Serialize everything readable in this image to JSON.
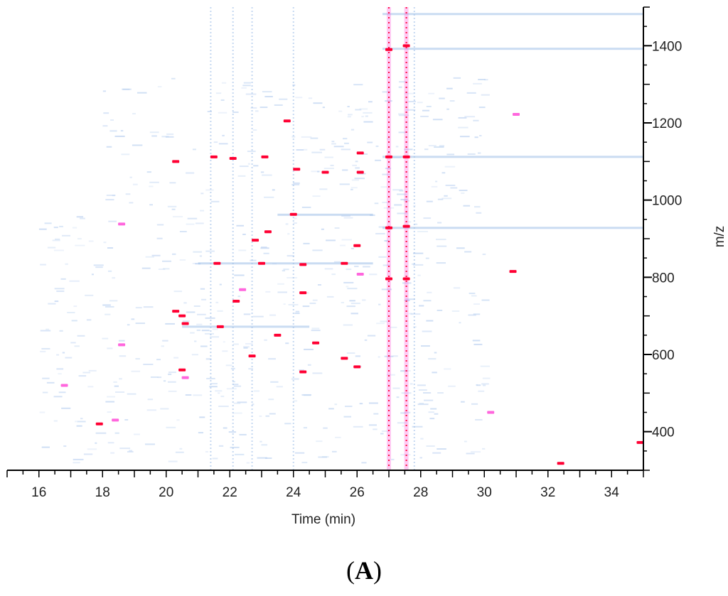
{
  "chart_data": {
    "type": "heatmap",
    "title": "",
    "xlabel": "Time (min)",
    "ylabel": "m/z",
    "xlim": [
      15,
      35
    ],
    "ylim": [
      300,
      1500
    ],
    "x_ticks": [
      16,
      18,
      20,
      22,
      24,
      26,
      28,
      30,
      32,
      34
    ],
    "y_ticks": [
      400,
      600,
      800,
      1000,
      1200,
      1400
    ],
    "y_axis_side": "right",
    "grid": false,
    "colors": {
      "high": "#ff0033",
      "medium": "#ff66dd",
      "low": "#9fbfe8",
      "background": "#ffffff"
    },
    "vertical_traces": [
      {
        "x": 21.4,
        "intensity": "low"
      },
      {
        "x": 22.1,
        "intensity": "low"
      },
      {
        "x": 22.7,
        "intensity": "low"
      },
      {
        "x": 24.0,
        "intensity": "low"
      },
      {
        "x": 27.0,
        "intensity": "high"
      },
      {
        "x": 27.55,
        "intensity": "high"
      },
      {
        "x": 27.8,
        "intensity": "low"
      }
    ],
    "horizontal_traces": [
      {
        "x0": 26.8,
        "x1": 35.0,
        "mz": 1482,
        "intensity": "low"
      },
      {
        "x0": 26.8,
        "x1": 35.0,
        "mz": 1392,
        "intensity": "low"
      },
      {
        "x0": 26.8,
        "x1": 35.0,
        "mz": 1112,
        "intensity": "low"
      },
      {
        "x0": 26.8,
        "x1": 35.0,
        "mz": 928,
        "intensity": "low"
      },
      {
        "x0": 23.5,
        "x1": 26.5,
        "mz": 962,
        "intensity": "low"
      },
      {
        "x0": 21.0,
        "x1": 26.5,
        "mz": 836,
        "intensity": "low"
      },
      {
        "x0": 20.5,
        "x1": 24.5,
        "mz": 672,
        "intensity": "low"
      }
    ],
    "peaks": [
      {
        "t": 17.9,
        "mz": 420,
        "intensity": "high"
      },
      {
        "t": 18.4,
        "mz": 430,
        "intensity": "medium"
      },
      {
        "t": 20.3,
        "mz": 1100,
        "intensity": "high"
      },
      {
        "t": 20.3,
        "mz": 712,
        "intensity": "high"
      },
      {
        "t": 20.5,
        "mz": 700,
        "intensity": "high"
      },
      {
        "t": 20.6,
        "mz": 680,
        "intensity": "high"
      },
      {
        "t": 20.5,
        "mz": 560,
        "intensity": "high"
      },
      {
        "t": 20.6,
        "mz": 540,
        "intensity": "medium"
      },
      {
        "t": 21.5,
        "mz": 1112,
        "intensity": "high"
      },
      {
        "t": 21.6,
        "mz": 836,
        "intensity": "high"
      },
      {
        "t": 21.7,
        "mz": 672,
        "intensity": "high"
      },
      {
        "t": 22.1,
        "mz": 1108,
        "intensity": "high"
      },
      {
        "t": 22.2,
        "mz": 738,
        "intensity": "high"
      },
      {
        "t": 22.4,
        "mz": 768,
        "intensity": "medium"
      },
      {
        "t": 22.8,
        "mz": 896,
        "intensity": "high"
      },
      {
        "t": 22.7,
        "mz": 596,
        "intensity": "high"
      },
      {
        "t": 23.0,
        "mz": 836,
        "intensity": "high"
      },
      {
        "t": 23.1,
        "mz": 1112,
        "intensity": "high"
      },
      {
        "t": 23.2,
        "mz": 918,
        "intensity": "high"
      },
      {
        "t": 23.5,
        "mz": 650,
        "intensity": "high"
      },
      {
        "t": 23.8,
        "mz": 1205,
        "intensity": "high"
      },
      {
        "t": 24.0,
        "mz": 963,
        "intensity": "high"
      },
      {
        "t": 24.1,
        "mz": 1080,
        "intensity": "high"
      },
      {
        "t": 24.3,
        "mz": 833,
        "intensity": "high"
      },
      {
        "t": 24.3,
        "mz": 760,
        "intensity": "high"
      },
      {
        "t": 24.3,
        "mz": 555,
        "intensity": "high"
      },
      {
        "t": 24.7,
        "mz": 630,
        "intensity": "high"
      },
      {
        "t": 25.0,
        "mz": 1072,
        "intensity": "high"
      },
      {
        "t": 25.6,
        "mz": 836,
        "intensity": "high"
      },
      {
        "t": 25.6,
        "mz": 590,
        "intensity": "high"
      },
      {
        "t": 26.0,
        "mz": 882,
        "intensity": "high"
      },
      {
        "t": 26.1,
        "mz": 1122,
        "intensity": "high"
      },
      {
        "t": 26.1,
        "mz": 1072,
        "intensity": "high"
      },
      {
        "t": 26.0,
        "mz": 568,
        "intensity": "high"
      },
      {
        "t": 26.1,
        "mz": 808,
        "intensity": "medium"
      },
      {
        "t": 27.0,
        "mz": 1390,
        "intensity": "high"
      },
      {
        "t": 27.0,
        "mz": 1112,
        "intensity": "high"
      },
      {
        "t": 27.0,
        "mz": 928,
        "intensity": "high"
      },
      {
        "t": 27.0,
        "mz": 796,
        "intensity": "high"
      },
      {
        "t": 27.55,
        "mz": 1400,
        "intensity": "high"
      },
      {
        "t": 27.55,
        "mz": 1112,
        "intensity": "high"
      },
      {
        "t": 27.55,
        "mz": 932,
        "intensity": "high"
      },
      {
        "t": 27.55,
        "mz": 796,
        "intensity": "high"
      },
      {
        "t": 30.2,
        "mz": 450,
        "intensity": "medium"
      },
      {
        "t": 30.9,
        "mz": 815,
        "intensity": "high"
      },
      {
        "t": 31.0,
        "mz": 1222,
        "intensity": "medium"
      },
      {
        "t": 32.4,
        "mz": 318,
        "intensity": "high"
      },
      {
        "t": 34.9,
        "mz": 372,
        "intensity": "high"
      },
      {
        "t": 18.6,
        "mz": 938,
        "intensity": "medium"
      },
      {
        "t": 16.8,
        "mz": 520,
        "intensity": "medium"
      },
      {
        "t": 18.6,
        "mz": 625,
        "intensity": "medium"
      }
    ]
  },
  "panel_label": {
    "open": "(",
    "letter": "A",
    "close": ")"
  }
}
